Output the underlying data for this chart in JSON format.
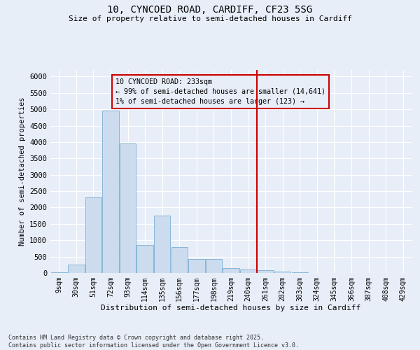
{
  "title_line1": "10, CYNCOED ROAD, CARDIFF, CF23 5SG",
  "title_line2": "Size of property relative to semi-detached houses in Cardiff",
  "xlabel": "Distribution of semi-detached houses by size in Cardiff",
  "ylabel": "Number of semi-detached properties",
  "categories": [
    "9sqm",
    "30sqm",
    "51sqm",
    "72sqm",
    "93sqm",
    "114sqm",
    "135sqm",
    "156sqm",
    "177sqm",
    "198sqm",
    "219sqm",
    "240sqm",
    "261sqm",
    "282sqm",
    "303sqm",
    "324sqm",
    "345sqm",
    "366sqm",
    "387sqm",
    "408sqm",
    "429sqm"
  ],
  "bar_values": [
    25,
    250,
    2300,
    4950,
    3950,
    850,
    1750,
    800,
    430,
    430,
    155,
    100,
    75,
    50,
    20,
    10,
    5,
    4,
    3,
    2,
    2
  ],
  "bar_color": "#ccdcee",
  "bar_edge_color": "#7aaed4",
  "vline_x": 11.5,
  "vline_color": "#cc0000",
  "annotation_title": "10 CYNCOED ROAD: 233sqm",
  "annotation_line1": "← 99% of semi-detached houses are smaller (14,641)",
  "annotation_line2": "1% of semi-detached houses are larger (123) →",
  "annotation_box_color": "#cc0000",
  "ylim": [
    0,
    6200
  ],
  "yticks": [
    0,
    500,
    1000,
    1500,
    2000,
    2500,
    3000,
    3500,
    4000,
    4500,
    5000,
    5500,
    6000
  ],
  "background_color": "#e8eef8",
  "grid_color": "#ffffff",
  "footer_line1": "Contains HM Land Registry data © Crown copyright and database right 2025.",
  "footer_line2": "Contains public sector information licensed under the Open Government Licence v3.0."
}
